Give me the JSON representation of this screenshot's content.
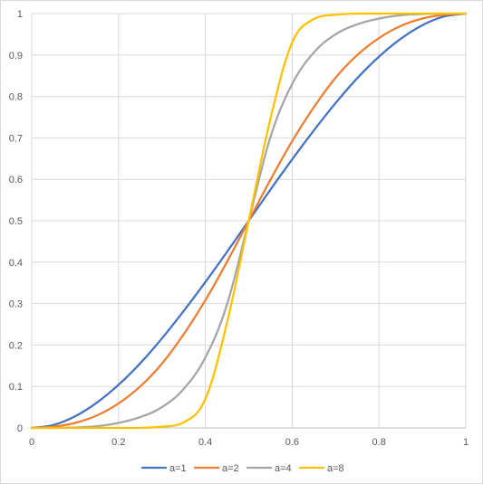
{
  "chart_data": {
    "type": "line",
    "title": "",
    "xlabel": "",
    "ylabel": "",
    "xlim": [
      0,
      1
    ],
    "ylim": [
      0,
      1
    ],
    "x_ticks": [
      "0",
      "0.2",
      "0.4",
      "0.6",
      "0.8",
      "1"
    ],
    "y_ticks": [
      "0",
      "0.1",
      "0.2",
      "0.3",
      "0.4",
      "0.5",
      "0.6",
      "0.7",
      "0.8",
      "0.9",
      "1"
    ],
    "grid": true,
    "legend_position": "bottom",
    "x": [
      0,
      0.05,
      0.1,
      0.15,
      0.2,
      0.25,
      0.3,
      0.35,
      0.4,
      0.45,
      0.5,
      0.55,
      0.6,
      0.65,
      0.7,
      0.75,
      0.8,
      0.85,
      0.9,
      0.95,
      1
    ],
    "series": [
      {
        "name": "a=1",
        "color": "#4472c4",
        "values": [
          0,
          0.007,
          0.028,
          0.061,
          0.104,
          0.156,
          0.216,
          0.282,
          0.352,
          0.425,
          0.5,
          0.575,
          0.648,
          0.718,
          0.784,
          0.844,
          0.896,
          0.939,
          0.972,
          0.993,
          1
        ]
      },
      {
        "name": "a=2",
        "color": "#ed7d31",
        "values": [
          0,
          0.003,
          0.012,
          0.03,
          0.059,
          0.1,
          0.155,
          0.226,
          0.308,
          0.401,
          0.5,
          0.599,
          0.692,
          0.774,
          0.845,
          0.9,
          0.941,
          0.97,
          0.988,
          0.997,
          1
        ]
      },
      {
        "name": "a=4",
        "color": "#a5a5a5",
        "values": [
          0,
          0,
          0.001,
          0.004,
          0.012,
          0.026,
          0.05,
          0.094,
          0.17,
          0.298,
          0.5,
          0.702,
          0.83,
          0.906,
          0.95,
          0.974,
          0.988,
          0.996,
          0.999,
          1,
          1
        ]
      },
      {
        "name": "a=8",
        "color": "#ffc000",
        "values": [
          0,
          0,
          0,
          0,
          0,
          0,
          0.003,
          0.013,
          0.07,
          0.254,
          0.5,
          0.746,
          0.93,
          0.987,
          0.997,
          1,
          1,
          1,
          1,
          1,
          1
        ]
      }
    ]
  }
}
